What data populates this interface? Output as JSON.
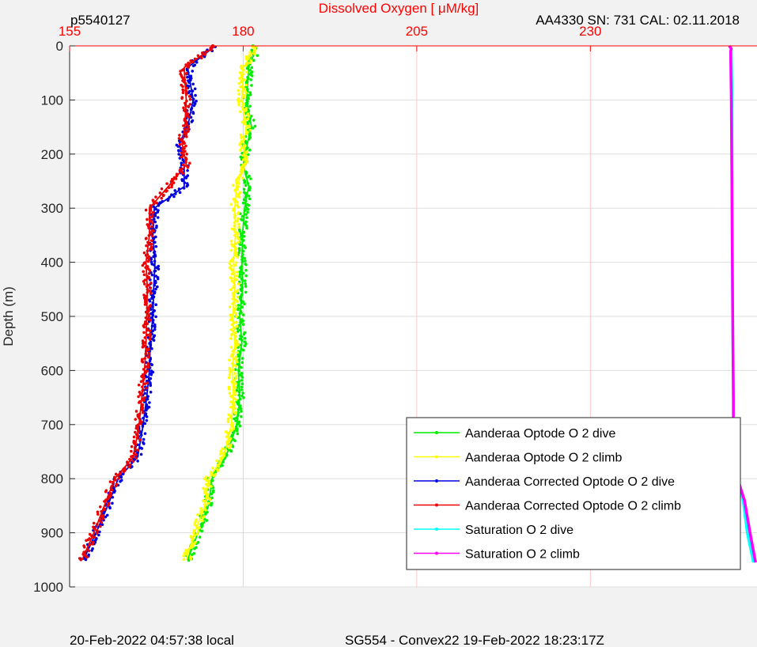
{
  "header": {
    "title": "Dissolved Oxygen [ μM/kg]",
    "left": "p5540127",
    "right": "AA4330   SN: 731   CAL: 02.11.2018"
  },
  "footer": {
    "left": "20-Feb-2022 04:57:38 local",
    "center": "SG554 - Convex22 19-Feb-2022 18:23:17Z"
  },
  "colors": {
    "background": "#f2f2f2",
    "axes": "#ffffff",
    "top_axis": "#ff0000",
    "grid": "#dddddd",
    "vgrid": "#ffc8c8"
  },
  "chart_data": {
    "type": "line",
    "title": "Dissolved Oxygen [ μM/kg]",
    "xlabel": "Dissolved Oxygen [ μM/kg]",
    "ylabel": "Depth (m)",
    "xlim": [
      155,
      254
    ],
    "ylim": [
      0,
      1000
    ],
    "y_reversed": true,
    "x_ticks": [
      155,
      180,
      205,
      230
    ],
    "y_ticks": [
      0,
      100,
      200,
      300,
      400,
      500,
      600,
      700,
      800,
      900,
      1000
    ],
    "x_axis_position": "top",
    "grid": true,
    "legend_position": "bottom-right",
    "series": [
      {
        "name": "Aanderaa Optode O 2 dive",
        "color": "#00ee00",
        "x": [
          182.0,
          180.8,
          180.5,
          181.2,
          180.6,
          180.0,
          180.8,
          180.2,
          179.9,
          179.8,
          179.9,
          179.5,
          179.8,
          179.3,
          179.5,
          179.1,
          177.5,
          175.5,
          175.0,
          173.5,
          172.0
        ],
        "y": [
          0,
          40,
          100,
          150,
          180,
          220,
          260,
          300,
          350,
          400,
          450,
          500,
          550,
          600,
          650,
          700,
          760,
          800,
          850,
          900,
          950
        ]
      },
      {
        "name": "Aanderaa Optode O 2 climb",
        "color": "#ffff00",
        "x": [
          182.0,
          180.0,
          179.8,
          180.5,
          180.0,
          180.3,
          179.0,
          178.8,
          178.9,
          178.6,
          178.8,
          178.5,
          178.8,
          178.4,
          178.6,
          178.3,
          177.2,
          175.0,
          174.5,
          173.0,
          171.8
        ],
        "y": [
          0,
          40,
          100,
          150,
          180,
          220,
          260,
          300,
          350,
          400,
          450,
          500,
          550,
          600,
          650,
          700,
          760,
          800,
          850,
          900,
          950
        ]
      },
      {
        "name": "Aanderaa Corrected Optode O 2 dive",
        "color": "#0000dd",
        "x": [
          176.0,
          172.0,
          172.8,
          172.0,
          170.8,
          171.5,
          171.5,
          167.2,
          167.0,
          167.3,
          167.1,
          167.0,
          166.6,
          166.5,
          166.1,
          165.6,
          164.8,
          162.0,
          160.5,
          158.8,
          157.0
        ],
        "y": [
          0,
          40,
          100,
          150,
          180,
          220,
          260,
          300,
          350,
          400,
          450,
          500,
          550,
          600,
          650,
          700,
          760,
          800,
          850,
          900,
          950
        ]
      },
      {
        "name": "Aanderaa Corrected Optode O 2 climb",
        "color": "#ee0000",
        "x": [
          176.0,
          171.5,
          171.8,
          171.6,
          171.2,
          171.8,
          169.2,
          166.5,
          166.5,
          166.0,
          166.2,
          166.1,
          166.0,
          165.8,
          165.4,
          165.0,
          164.2,
          161.5,
          160.0,
          158.5,
          156.8
        ],
        "y": [
          0,
          40,
          100,
          150,
          180,
          220,
          260,
          300,
          350,
          400,
          450,
          500,
          550,
          600,
          650,
          700,
          760,
          800,
          850,
          900,
          950
        ]
      },
      {
        "name": "Saturation O 2 dive",
        "color": "#00ffff",
        "x": [
          250.0,
          250.3,
          250.3,
          250.4,
          250.4,
          250.5,
          250.6,
          250.6,
          251.0,
          251.3,
          252.0,
          252.6,
          253.5
        ],
        "y": [
          0,
          5,
          10,
          100,
          300,
          500,
          650,
          700,
          760,
          800,
          840,
          900,
          955
        ]
      },
      {
        "name": "Saturation O 2 climb",
        "color": "#ff00ff",
        "x": [
          250.0,
          250.3,
          250.2,
          250.3,
          250.4,
          250.5,
          250.6,
          250.6,
          251.0,
          251.2,
          252.2,
          253.0,
          253.8
        ],
        "y": [
          0,
          5,
          10,
          100,
          300,
          500,
          650,
          700,
          760,
          800,
          840,
          900,
          955
        ]
      }
    ]
  }
}
